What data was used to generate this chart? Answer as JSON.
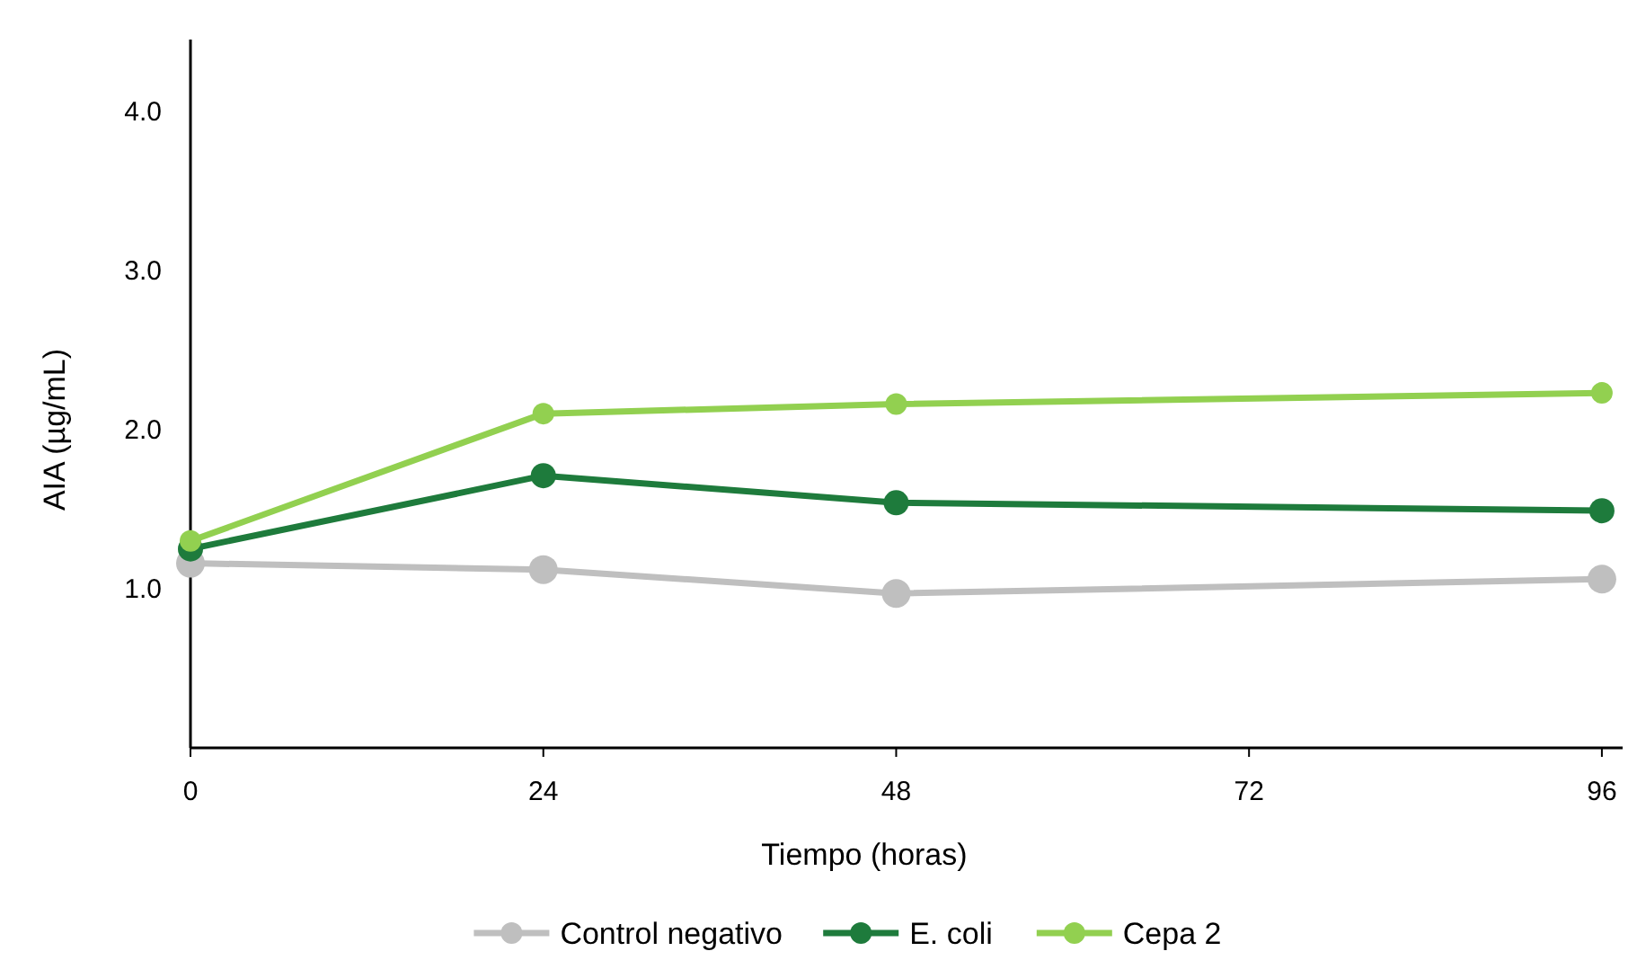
{
  "chart_data": {
    "type": "line",
    "xlabel": "Tiempo  (horas)",
    "ylabel": "AIA (µg/mL)",
    "x": [
      0,
      24,
      48,
      96
    ],
    "xlim": [
      0,
      99
    ],
    "xticks": [
      0,
      24,
      48,
      72,
      96
    ],
    "ylim": [
      0,
      4.45
    ],
    "yticks": [
      {
        "value": 1,
        "label": "1.0"
      },
      {
        "value": 2,
        "label": "2.0"
      },
      {
        "value": 3,
        "label": "3.0"
      },
      {
        "value": 4,
        "label": "4.0"
      }
    ],
    "grid": false,
    "legend": "bottom",
    "marker": "circle",
    "line_style": "solid",
    "series": [
      {
        "name": "Control negativo",
        "color": "#bfbfbf",
        "values": [
          1.16,
          1.12,
          0.97,
          1.06
        ]
      },
      {
        "name": "E. coli",
        "color": "#1e7b3c",
        "values": [
          1.25,
          1.71,
          1.54,
          1.49
        ]
      },
      {
        "name": "Cepa 2",
        "color": "#92d050",
        "values": [
          1.3,
          2.1,
          2.16,
          2.23
        ]
      }
    ]
  }
}
